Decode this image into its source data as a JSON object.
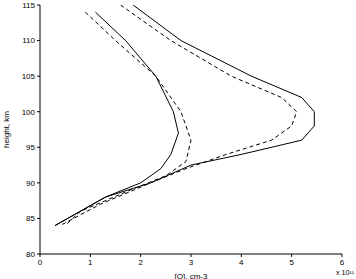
{
  "chart_data": {
    "type": "line",
    "x_label": "[O], cm-3",
    "y_label": "height, km",
    "annotation": "x 10¹¹",
    "xlim": [
      0,
      6
    ],
    "xticks": [
      0,
      1,
      2,
      3,
      4,
      5,
      6
    ],
    "ylim": [
      80,
      115
    ],
    "yticks": [
      80,
      85,
      90,
      95,
      100,
      105,
      110,
      115
    ],
    "grid": false,
    "series": [
      {
        "color": "#000000",
        "line_style": "solid",
        "x": [
          1.85,
          2.8,
          4.2,
          5.2,
          5.45,
          5.45,
          5.2,
          4.0,
          3.0,
          2.2,
          1.3,
          0.3
        ],
        "y": [
          115,
          110,
          105,
          102,
          100,
          98,
          96,
          94,
          92.5,
          90,
          88,
          84
        ]
      },
      {
        "color": "#000000",
        "line_style": "dashed",
        "x": [
          1.6,
          2.6,
          3.8,
          4.8,
          5.1,
          5.0,
          4.6,
          3.7,
          2.9,
          2.2,
          1.2,
          0.4
        ],
        "y": [
          115,
          110,
          105,
          102,
          100,
          98,
          96,
          94,
          92,
          90,
          87,
          84
        ]
      },
      {
        "color": "#000000",
        "line_style": "solid",
        "x": [
          1.1,
          1.7,
          2.3,
          2.65,
          2.75,
          2.6,
          2.4,
          2.0,
          1.3,
          0.3
        ],
        "y": [
          114,
          110,
          105,
          100,
          97,
          94,
          92,
          90,
          88,
          84
        ]
      },
      {
        "color": "#000000",
        "line_style": "dashed",
        "x": [
          0.9,
          1.5,
          2.3,
          2.8,
          3.0,
          2.9,
          2.5,
          1.8,
          0.8,
          0.5
        ],
        "y": [
          114,
          110,
          105,
          100,
          96,
          93,
          91,
          89,
          86,
          84
        ]
      }
    ]
  }
}
